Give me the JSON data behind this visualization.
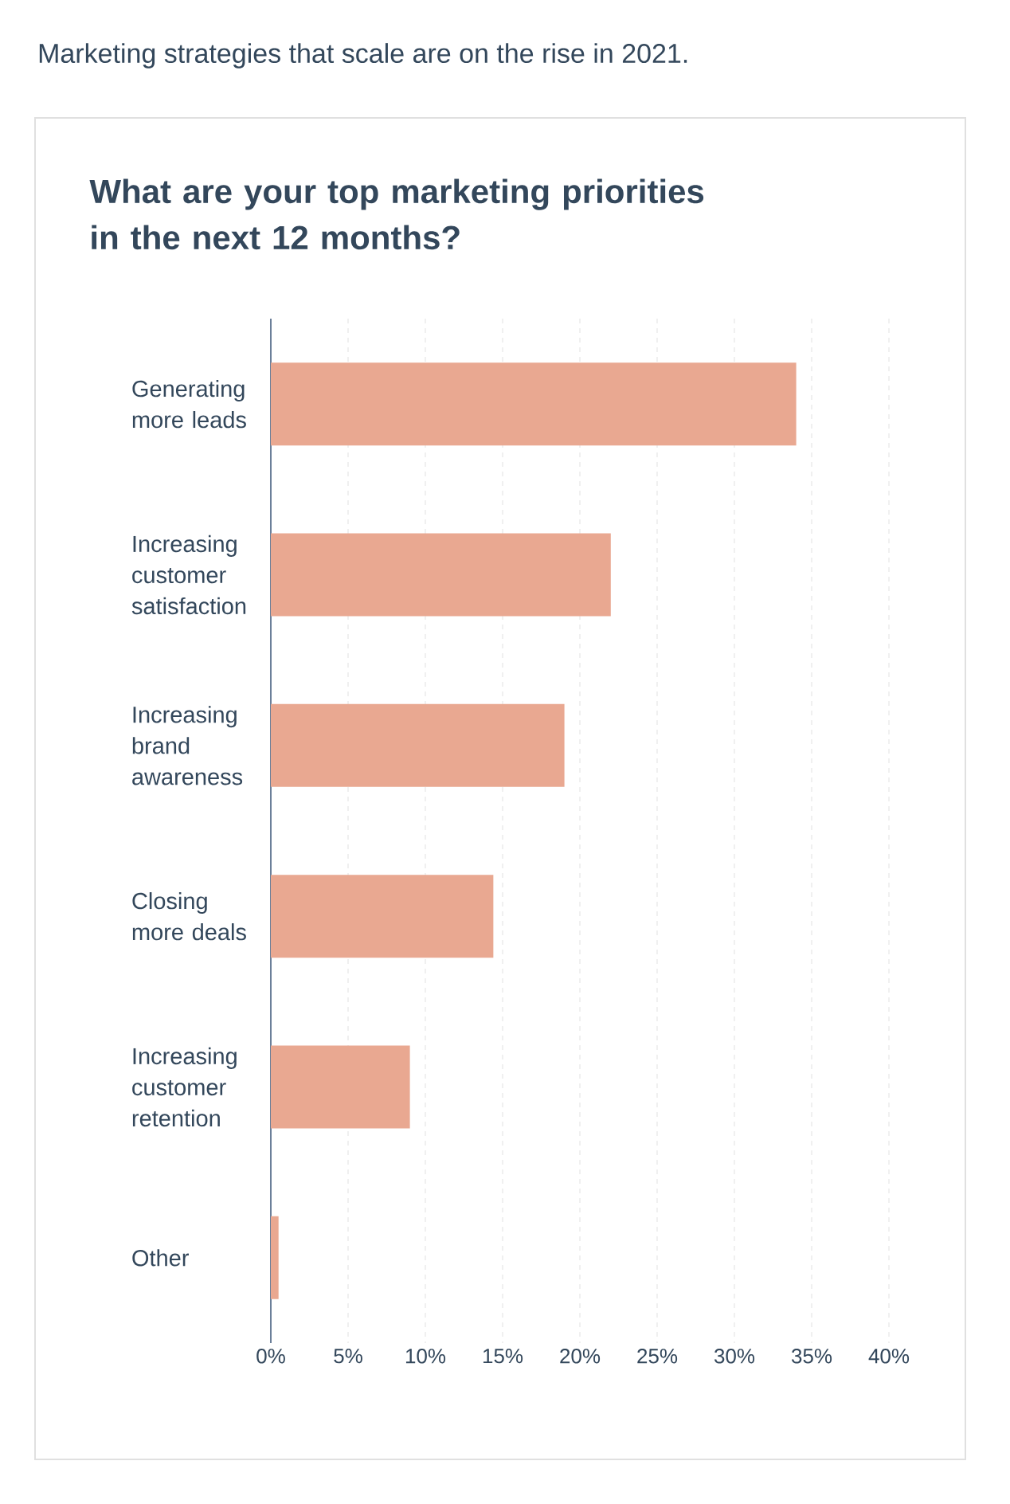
{
  "chart_data": {
    "type": "bar",
    "orientation": "horizontal",
    "subtitle": "Marketing strategies that scale are on the rise in 2021.",
    "title": "What are your top marketing priorities in the next 12 months?",
    "categories": [
      "Generating more leads",
      "Increasing customer satisfaction",
      "Increasing brand awareness",
      "Closing more deals",
      "Increasing customer retention",
      "Other"
    ],
    "values": [
      34,
      22,
      19,
      14.4,
      9,
      0.5
    ],
    "color": "#e9a891",
    "xlim": [
      0,
      40
    ],
    "xticks": [
      {
        "value": 0,
        "label": "0%"
      },
      {
        "value": 5,
        "label": "5%"
      },
      {
        "value": 10,
        "label": "10%"
      },
      {
        "value": 15,
        "label": "15%"
      },
      {
        "value": 20,
        "label": "20%"
      },
      {
        "value": 25,
        "label": "25%"
      },
      {
        "value": 30,
        "label": "30%"
      },
      {
        "value": 35,
        "label": "35%"
      },
      {
        "value": 40,
        "label": "40%"
      }
    ],
    "grid": "x"
  }
}
